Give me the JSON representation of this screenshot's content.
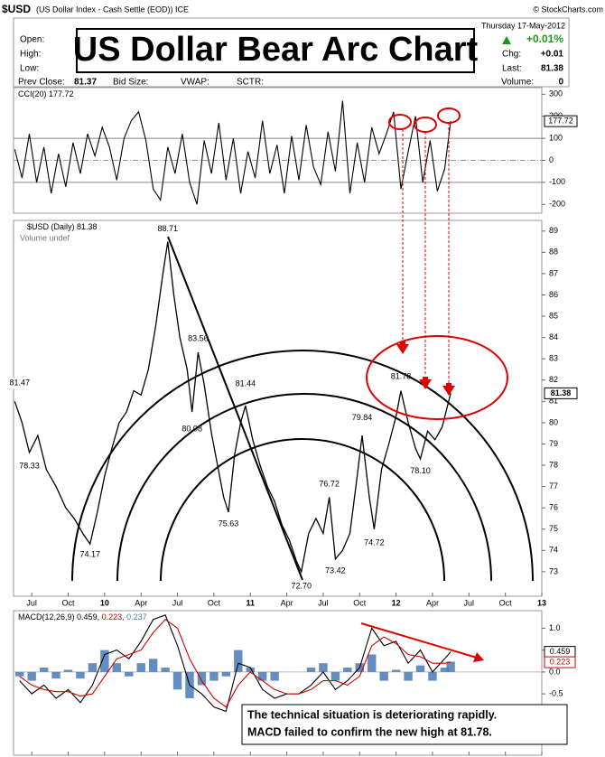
{
  "header": {
    "symbol": "$USD",
    "description": "(US Dollar Index - Cash Settle (EOD)) ICE",
    "source": "© StockCharts.com",
    "date": "Thursday 17-May-2012",
    "open_label": "Open:",
    "high_label": "High:",
    "low_label": "Low:",
    "change_pct": "+0.01%",
    "chg_label": "Chg:",
    "chg": "+0.01",
    "last_label": "Last:",
    "last": 81.38,
    "prev_close_label": "Prev Close:",
    "prev_close": 81.37,
    "bid_label": "Bid Size:",
    "vwap_label": "VWAP:",
    "sctr_label": "SCTR:",
    "volume_label": "Volume:",
    "volume": 0
  },
  "overlay": {
    "title": "US Dollar Bear Arc Chart",
    "note": [
      "The technical situation is deteriorating rapidly.",
      "MACD failed to confirm the new high at 81.78."
    ]
  },
  "chart_data": [
    {
      "type": "line",
      "title": "CCI(20)",
      "last_label": "177.72",
      "xlim": [
        0.5,
        44
      ],
      "ylim": [
        -240,
        330
      ],
      "yticks": [
        -200,
        -100,
        0,
        100,
        200,
        300
      ],
      "levels": [
        -100,
        100
      ],
      "x": [
        0.6,
        1.2,
        1.8,
        2.4,
        3.0,
        3.6,
        4.2,
        4.8,
        5.4,
        6.0,
        6.6,
        7.2,
        7.8,
        8.4,
        9.0,
        9.6,
        10.2,
        10.8,
        11.4,
        12.0,
        12.6,
        13.2,
        13.8,
        14.4,
        15.0,
        15.6,
        16.2,
        16.8,
        17.4,
        18.0,
        18.6,
        19.2,
        19.8,
        20.4,
        21.0,
        21.6,
        22.2,
        22.8,
        23.4,
        24.0,
        24.6,
        25.2,
        25.8,
        26.4,
        27.0,
        27.6,
        28.2,
        28.8,
        29.4,
        30.0,
        30.6,
        31.2,
        31.8,
        32.4,
        33.0,
        33.6,
        34.2,
        34.8,
        35.4,
        36.0,
        36.5
      ],
      "series": [
        {
          "color": "#000000",
          "values": [
            50,
            -80,
            120,
            -100,
            60,
            -150,
            30,
            -120,
            80,
            -60,
            120,
            20,
            150,
            60,
            -90,
            100,
            180,
            220,
            90,
            -130,
            -180,
            60,
            -60,
            120,
            -100,
            -200,
            90,
            -60,
            170,
            -90,
            100,
            -150,
            40,
            -80,
            180,
            -60,
            70,
            -150,
            110,
            -90,
            160,
            -30,
            -110,
            130,
            -50,
            270,
            -150,
            80,
            -100,
            150,
            30,
            120,
            220,
            -130,
            40,
            200,
            -100,
            90,
            -140,
            -40,
            177.72
          ]
        }
      ]
    },
    {
      "type": "line",
      "title": "$USD (Daily)",
      "last_label": "81.38",
      "subtitle": "Volume undef",
      "xlim": [
        0.5,
        44
      ],
      "ylim": [
        71.85,
        89.5
      ],
      "yticks": [
        73,
        74,
        75,
        76,
        77,
        78,
        79,
        80,
        81,
        82,
        83,
        84,
        85,
        86,
        87,
        88,
        89
      ],
      "xticks": [
        {
          "value": 2,
          "label": "Jul"
        },
        {
          "value": 5,
          "label": "Oct"
        },
        {
          "value": 8,
          "label": "10"
        },
        {
          "value": 11,
          "label": "Apr"
        },
        {
          "value": 14,
          "label": "Jul"
        },
        {
          "value": 17,
          "label": "Oct"
        },
        {
          "value": 20,
          "label": "11"
        },
        {
          "value": 23,
          "label": "Apr"
        },
        {
          "value": 26,
          "label": "Jul"
        },
        {
          "value": 29,
          "label": "Oct"
        },
        {
          "value": 32,
          "label": "12"
        },
        {
          "value": 35,
          "label": "Apr"
        },
        {
          "value": 38,
          "label": "Jul"
        },
        {
          "value": 41,
          "label": "Oct"
        },
        {
          "value": 44,
          "label": "13"
        }
      ],
      "x": [
        0.6,
        1.2,
        1.8,
        2.5,
        3.2,
        4,
        4.8,
        5.5,
        6.2,
        6.8,
        7.4,
        8,
        8.6,
        9.2,
        9.8,
        10.4,
        11,
        11.6,
        12.2,
        12.8,
        13.2,
        13.7,
        14.2,
        14.8,
        15.2,
        15.7,
        16.2,
        16.8,
        17.3,
        17.8,
        18.2,
        18.7,
        19.2,
        19.6,
        20.2,
        20.8,
        21.4,
        22,
        22.6,
        23.2,
        23.8,
        24.2,
        24.8,
        25.4,
        26,
        26.5,
        27,
        27.6,
        28.2,
        28.8,
        29.2,
        29.8,
        30.2,
        30.8,
        31.4,
        32,
        32.4,
        33,
        33.6,
        34,
        34.6,
        35.2,
        35.8,
        36.5
      ],
      "series": [
        {
          "color": "#000000",
          "values": [
            81.0,
            80.0,
            78.6,
            79.4,
            77.8,
            77.0,
            76.0,
            75.5,
            74.8,
            74.3,
            75.8,
            77.5,
            78.8,
            80.0,
            80.5,
            81.5,
            81.3,
            82.5,
            84.5,
            87.0,
            88.5,
            86.0,
            84.0,
            82.5,
            80.5,
            83.3,
            81.8,
            79.5,
            78.0,
            76.5,
            75.8,
            78.5,
            80.0,
            80.8,
            79.2,
            78.0,
            77.0,
            76.3,
            75.2,
            74.5,
            73.5,
            73.0,
            74.8,
            75.5,
            74.8,
            76.5,
            73.6,
            74.0,
            74.8,
            77.5,
            79.4,
            76.5,
            75.0,
            77.8,
            79.0,
            80.3,
            81.5,
            80.0,
            78.8,
            78.3,
            79.6,
            79.2,
            79.8,
            81.38
          ]
        }
      ],
      "annotations": [
        {
          "x": 1.0,
          "y": 81.47,
          "label": "81.47"
        },
        {
          "x": 1.8,
          "y": 78.33,
          "label": "78.33"
        },
        {
          "x": 6.8,
          "y": 74.17,
          "label": "74.17"
        },
        {
          "x": 13.2,
          "y": 88.71,
          "label": "88.71"
        },
        {
          "x": 15.7,
          "y": 83.56,
          "label": "83.56"
        },
        {
          "x": 15.2,
          "y": 80.08,
          "label": "80.08"
        },
        {
          "x": 19.6,
          "y": 81.44,
          "label": "81.44"
        },
        {
          "x": 18.2,
          "y": 75.63,
          "label": "75.63"
        },
        {
          "x": 24.2,
          "y": 72.7,
          "label": "72.70"
        },
        {
          "x": 26.5,
          "y": 76.72,
          "label": "76.72"
        },
        {
          "x": 27,
          "y": 73.42,
          "label": "73.42"
        },
        {
          "x": 29.2,
          "y": 79.84,
          "label": "79.84"
        },
        {
          "x": 30.2,
          "y": 74.72,
          "label": "74.72"
        },
        {
          "x": 32.4,
          "y": 81.78,
          "label": "81.78"
        },
        {
          "x": 34,
          "y": 78.1,
          "label": "78.10"
        }
      ]
    },
    {
      "type": "line",
      "title": "MACD(12,26,9)",
      "legend": [
        "0.459,",
        "0.223,",
        "0.237"
      ],
      "xlim": [
        0.5,
        44
      ],
      "ylim": [
        -1.9,
        1.4
      ],
      "yticks": [
        {
          "value": -1,
          "label": "-1.0"
        },
        -0.5,
        {
          "value": 0,
          "label": "0.0"
        },
        0.5,
        {
          "value": 1,
          "label": "1.0"
        }
      ],
      "xticks": [
        {
          "value": 2,
          "label": "Jul"
        },
        {
          "value": 5,
          "label": "Oct"
        },
        {
          "value": 8,
          "label": "10"
        },
        {
          "value": 11,
          "label": "Apr"
        },
        {
          "value": 14,
          "label": "Jul"
        },
        {
          "value": 17,
          "label": "Oct"
        },
        {
          "value": 20,
          "label": "11"
        },
        {
          "value": 23,
          "label": "Apr"
        },
        {
          "value": 26,
          "label": "Jul"
        },
        {
          "value": 29,
          "label": "Oct"
        },
        {
          "value": 32,
          "label": "12"
        },
        {
          "value": 35,
          "label": "Apr"
        },
        {
          "value": 38,
          "label": "Jul"
        },
        {
          "value": 41,
          "label": "Oct"
        },
        {
          "value": 44,
          "label": "13"
        }
      ],
      "x": [
        1,
        2,
        3,
        4,
        5,
        6,
        7,
        8,
        9,
        10,
        11,
        12,
        13,
        14,
        15,
        16,
        17,
        18,
        19,
        20,
        21,
        22,
        23,
        24,
        25,
        26,
        27,
        28,
        29,
        30,
        31,
        32,
        33,
        34,
        35,
        36,
        36.5
      ],
      "series": [
        {
          "color": "#4a7ab5",
          "style": "bar",
          "values": [
            -0.1,
            -0.2,
            0.1,
            -0.15,
            0.05,
            -0.15,
            0.2,
            0.5,
            0.2,
            -0.1,
            0.2,
            0.3,
            0.1,
            -0.4,
            -0.6,
            -0.3,
            -0.2,
            -0.1,
            0.5,
            0.1,
            -0.2,
            -0.2,
            0,
            0,
            0.1,
            0.2,
            -0.2,
            0.1,
            0.2,
            0.4,
            -0.2,
            0.05,
            -0.2,
            0.15,
            -0.2,
            0.1,
            0.237
          ]
        },
        {
          "color": "#000000",
          "last_label": "0.459",
          "values": [
            -0.2,
            -0.5,
            -0.3,
            -0.6,
            -0.4,
            -0.7,
            -0.3,
            0.4,
            0.5,
            0.3,
            0.7,
            1.2,
            1.3,
            0.6,
            -0.3,
            -0.5,
            -0.8,
            -0.9,
            0.2,
            0.1,
            -0.4,
            -0.6,
            -0.5,
            -0.5,
            -0.3,
            0.0,
            -0.4,
            -0.2,
            0.1,
            1.0,
            0.6,
            0.7,
            0.2,
            0.5,
            0.0,
            0.3,
            0.459
          ]
        },
        {
          "color": "#d00000",
          "last_label": "0.223",
          "values": [
            -0.1,
            -0.3,
            -0.4,
            -0.45,
            -0.45,
            -0.55,
            -0.5,
            -0.1,
            0.3,
            0.4,
            0.5,
            0.9,
            1.2,
            1.0,
            0.3,
            -0.2,
            -0.6,
            -0.8,
            -0.3,
            0.0,
            -0.2,
            -0.4,
            -0.5,
            -0.5,
            -0.4,
            -0.2,
            -0.2,
            -0.3,
            -0.1,
            0.6,
            0.8,
            0.65,
            0.4,
            0.35,
            0.2,
            0.2,
            0.223
          ]
        }
      ]
    }
  ]
}
